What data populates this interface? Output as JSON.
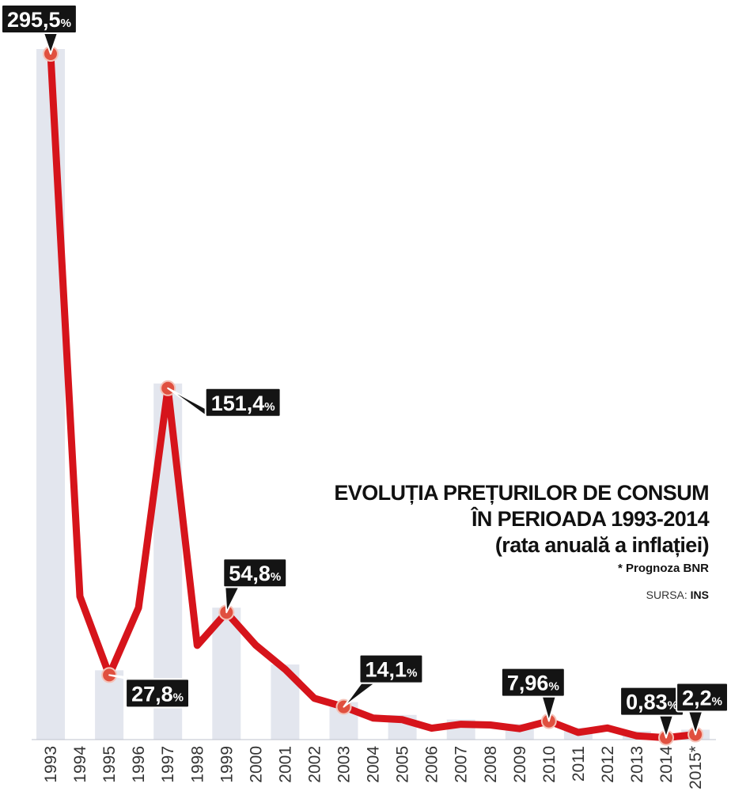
{
  "chart_data": {
    "type": "line",
    "title": "EVOLUȚIA PREȚURILOR DE CONSUM",
    "title_line2": "ÎN PERIOADA 1993-2014",
    "subtitle": "(rata anuală a inflației)",
    "footnote": "* Prognoza BNR",
    "source_prefix": "SURSA:",
    "source_name": "INS",
    "unit": "%",
    "categories": [
      "1993",
      "1994",
      "1995",
      "1996",
      "1997",
      "1998",
      "1999",
      "2000",
      "2001",
      "2002",
      "2003",
      "2004",
      "2005",
      "2006",
      "2007",
      "2008",
      "2009",
      "2010",
      "2011",
      "2012",
      "2013",
      "2014",
      "2015*"
    ],
    "values": [
      295.5,
      61.7,
      27.8,
      56.8,
      151.4,
      40.6,
      54.8,
      40.7,
      30.3,
      17.8,
      14.1,
      9.3,
      8.6,
      4.9,
      6.6,
      6.3,
      4.7,
      7.96,
      3.1,
      5.0,
      1.6,
      0.83,
      2.2
    ],
    "shaded_columns": [
      0,
      2,
      4,
      6,
      8,
      10,
      12,
      14,
      16,
      18,
      20,
      22
    ],
    "data_labels": [
      {
        "index": 0,
        "number": "295,5",
        "suffix": "%"
      },
      {
        "index": 4,
        "number": "151,4",
        "suffix": "%"
      },
      {
        "index": 6,
        "number": "54,8",
        "suffix": "%"
      },
      {
        "index": 2,
        "number": "27,8",
        "suffix": "%"
      },
      {
        "index": 10,
        "number": "14,1",
        "suffix": "%"
      },
      {
        "index": 17,
        "number": "7,96",
        "suffix": "%"
      },
      {
        "index": 21,
        "number": "0,83",
        "suffix": "%"
      },
      {
        "index": 22,
        "number": "2,2",
        "suffix": "%"
      }
    ],
    "line_color": "#d6141b",
    "marker_color": "#e0503f",
    "band_color": "#e3e6ee",
    "label_bg": "#141414",
    "grid": false,
    "legend": "none",
    "ylim": [
      0,
      300
    ]
  }
}
